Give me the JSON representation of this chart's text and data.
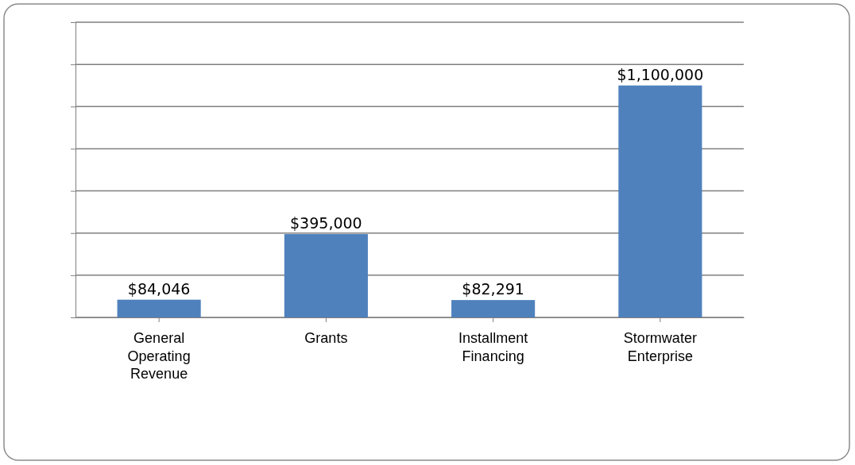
{
  "chart_data": {
    "type": "bar",
    "categories": [
      "General Operating Revenue",
      "Grants",
      "Installment Financing",
      "Stormwater Enterprise"
    ],
    "values": [
      84046,
      395000,
      82291,
      1100000
    ],
    "value_labels": [
      "$84,046",
      "$395,000",
      "$82,291",
      "$1,100,000"
    ],
    "color": "#4f81bd",
    "ylim": [
      0,
      1400000
    ],
    "yticks": [
      {
        "value": 0,
        "label": null
      },
      {
        "value": 200000,
        "label": null
      },
      {
        "value": 400000,
        "label": null
      },
      {
        "value": 600000,
        "label": null
      },
      {
        "value": 800000,
        "label": null
      },
      {
        "value": 1000000,
        "label": null
      },
      {
        "value": 1200000,
        "label": null
      },
      {
        "value": 1400000,
        "label": null
      }
    ],
    "grid": "y",
    "tick_labels": "x"
  }
}
